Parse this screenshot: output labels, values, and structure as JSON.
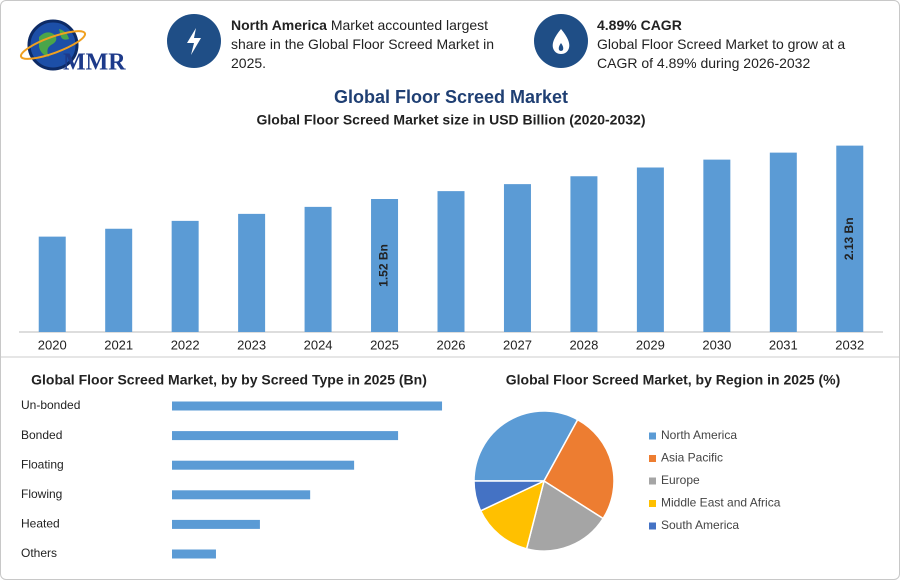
{
  "header": {
    "logo_text": "MMR",
    "stats": [
      {
        "highlight": "North America",
        "text": "Market accounted largest share in the Global Floor Screed Market in 2025."
      },
      {
        "highlight": "4.89% CAGR",
        "text": "Global Floor Screed Market to grow at a CAGR of 4.89% during 2026-2032"
      }
    ]
  },
  "chart_data": [
    {
      "type": "bar",
      "title": "Global Floor Screed Market",
      "subtitle": "Global Floor Screed Market size in USD Billion (2020-2032)",
      "categories": [
        "2020",
        "2021",
        "2022",
        "2023",
        "2024",
        "2025",
        "2026",
        "2027",
        "2028",
        "2029",
        "2030",
        "2031",
        "2032"
      ],
      "values": [
        1.09,
        1.18,
        1.27,
        1.35,
        1.43,
        1.52,
        1.61,
        1.69,
        1.78,
        1.88,
        1.97,
        2.05,
        2.13
      ],
      "value_labels": [
        null,
        null,
        null,
        null,
        null,
        "1.52 Bn",
        null,
        null,
        null,
        null,
        null,
        null,
        "2.13 Bn"
      ],
      "color": "#5b9bd5"
    },
    {
      "type": "hbar",
      "title": "Global Floor Screed Market, by by Screed Type in 2025 (Bn)",
      "categories": [
        "Un-bonded",
        "Bonded",
        "Floating",
        "Flowing",
        "Heated",
        "Others"
      ],
      "values": [
        0.43,
        0.36,
        0.29,
        0.22,
        0.14,
        0.07
      ],
      "color": "#5b9bd5"
    },
    {
      "type": "pie",
      "title": "Global Floor Screed Market, by Region in 2025 (%)",
      "categories": [
        "North America",
        "Asia Pacific",
        "Europe",
        "Middle East and Africa",
        "South America"
      ],
      "values": [
        33,
        26,
        20,
        14,
        7
      ],
      "colors": [
        "#5b9bd5",
        "#ed7d31",
        "#a5a5a5",
        "#ffc000",
        "#4472c4"
      ]
    }
  ]
}
